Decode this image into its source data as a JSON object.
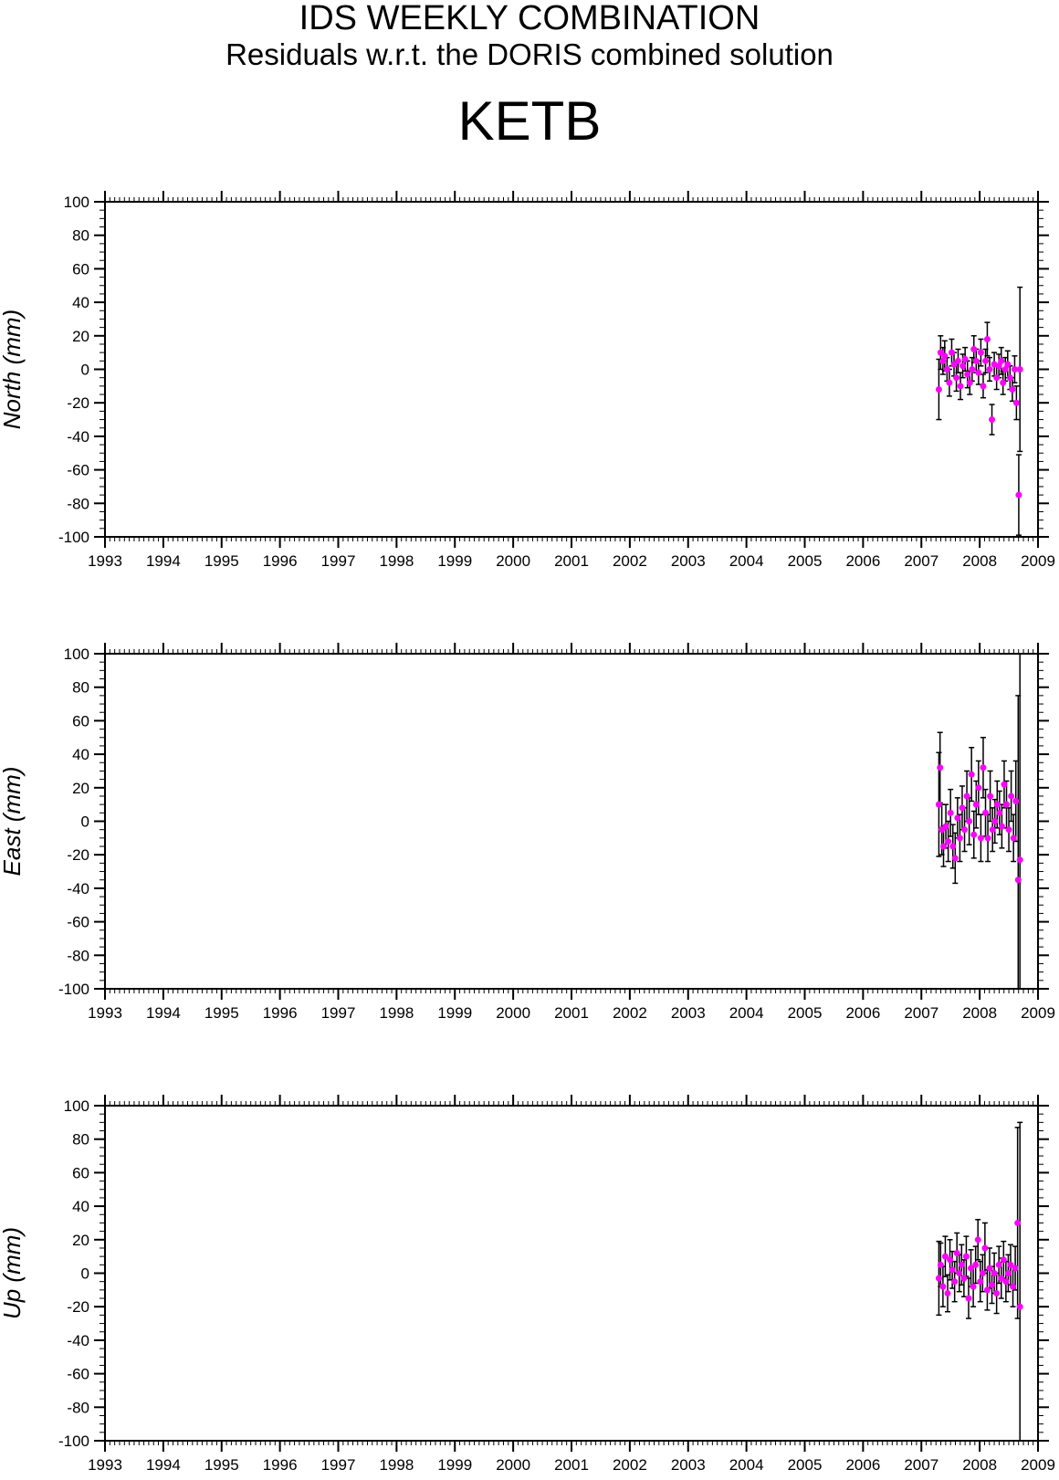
{
  "title": "IDS WEEKLY COMBINATION",
  "subtitle": "Residuals w.r.t. the DORIS combined solution",
  "station": "KETB",
  "colors": {
    "point": "#ff00ff",
    "errorbar": "#000000",
    "axis": "#000000"
  },
  "chart_data": [
    {
      "type": "scatter",
      "ylabel": "North (mm)",
      "xlim": [
        1993,
        2009
      ],
      "ylim": [
        -100,
        100
      ],
      "x_ticks": [
        "1993",
        "1994",
        "1995",
        "1996",
        "1997",
        "1998",
        "1999",
        "2000",
        "2001",
        "2002",
        "2003",
        "2004",
        "2005",
        "2006",
        "2007",
        "2008",
        "2009"
      ],
      "y_ticks": [
        "100",
        "80",
        "60",
        "40",
        "20",
        "0",
        "-20",
        "-40",
        "-60",
        "-80",
        "-100"
      ],
      "series": [
        {
          "x": [
            2007.3,
            2007.33,
            2007.37,
            2007.4,
            2007.44,
            2007.48,
            2007.52,
            2007.56,
            2007.6,
            2007.63,
            2007.67,
            2007.71,
            2007.75,
            2007.79,
            2007.83,
            2007.87,
            2007.9,
            2007.94,
            2007.98,
            2008.02,
            2008.06,
            2008.1,
            2008.13,
            2008.17,
            2008.21,
            2008.25,
            2008.29,
            2008.33,
            2008.37,
            2008.4,
            2008.44,
            2008.48,
            2008.52,
            2008.56,
            2008.6,
            2008.63,
            2008.67,
            2008.69
          ],
          "y": [
            -12,
            10,
            5,
            8,
            0,
            -8,
            10,
            3,
            -5,
            5,
            -10,
            2,
            6,
            -3,
            -8,
            0,
            12,
            5,
            -2,
            10,
            -10,
            5,
            18,
            0,
            -30,
            3,
            -5,
            2,
            5,
            -8,
            0,
            3,
            -5,
            -12,
            0,
            -20,
            -75,
            0
          ],
          "err": [
            18,
            10,
            8,
            9,
            7,
            8,
            8,
            7,
            8,
            7,
            8,
            7,
            7,
            8,
            7,
            7,
            8,
            7,
            7,
            8,
            7,
            7,
            10,
            7,
            9,
            7,
            7,
            7,
            8,
            7,
            7,
            8,
            7,
            7,
            8,
            10,
            24,
            49
          ]
        }
      ]
    },
    {
      "type": "scatter",
      "ylabel": "East (mm)",
      "xlim": [
        1993,
        2009
      ],
      "ylim": [
        -100,
        100
      ],
      "x_ticks": [
        "1993",
        "1994",
        "1995",
        "1996",
        "1997",
        "1998",
        "1999",
        "2000",
        "2001",
        "2002",
        "2003",
        "2004",
        "2005",
        "2006",
        "2007",
        "2008",
        "2009"
      ],
      "y_ticks": [
        "100",
        "80",
        "60",
        "40",
        "20",
        "0",
        "-20",
        "-40",
        "-60",
        "-80",
        "-100"
      ],
      "series": [
        {
          "x": [
            2007.3,
            2007.32,
            2007.35,
            2007.38,
            2007.42,
            2007.46,
            2007.5,
            2007.54,
            2007.58,
            2007.62,
            2007.66,
            2007.7,
            2007.74,
            2007.78,
            2007.82,
            2007.86,
            2007.9,
            2007.94,
            2007.98,
            2008.02,
            2008.06,
            2008.1,
            2008.14,
            2008.18,
            2008.22,
            2008.26,
            2008.3,
            2008.34,
            2008.38,
            2008.42,
            2008.46,
            2008.5,
            2008.54,
            2008.58,
            2008.62,
            2008.66,
            2008.69
          ],
          "y": [
            10,
            32,
            -5,
            -15,
            -3,
            -12,
            5,
            -15,
            -22,
            2,
            -10,
            8,
            -5,
            15,
            0,
            28,
            -8,
            10,
            20,
            -10,
            32,
            5,
            -10,
            15,
            -5,
            0,
            10,
            5,
            -3,
            22,
            10,
            -5,
            15,
            -10,
            12,
            -35,
            -23
          ],
          "err": [
            31,
            21,
            15,
            12,
            13,
            12,
            14,
            13,
            15,
            12,
            14,
            13,
            13,
            15,
            14,
            16,
            14,
            14,
            16,
            14,
            18,
            14,
            14,
            15,
            13,
            13,
            14,
            13,
            13,
            14,
            14,
            13,
            15,
            14,
            24,
            110,
            125
          ]
        }
      ]
    },
    {
      "type": "scatter",
      "ylabel": "Up (mm)",
      "xlim": [
        1993,
        2009
      ],
      "ylim": [
        -100,
        100
      ],
      "x_ticks": [
        "1993",
        "1994",
        "1995",
        "1996",
        "1997",
        "1998",
        "1999",
        "2000",
        "2001",
        "2002",
        "2003",
        "2004",
        "2005",
        "2006",
        "2007",
        "2008",
        "2009"
      ],
      "y_ticks": [
        "100",
        "80",
        "60",
        "40",
        "20",
        "0",
        "-20",
        "-40",
        "-60",
        "-80",
        "-100"
      ],
      "series": [
        {
          "x": [
            2007.3,
            2007.33,
            2007.37,
            2007.41,
            2007.45,
            2007.49,
            2007.53,
            2007.57,
            2007.61,
            2007.65,
            2007.69,
            2007.73,
            2007.77,
            2007.81,
            2007.85,
            2007.89,
            2007.93,
            2007.97,
            2008.01,
            2008.05,
            2008.09,
            2008.13,
            2008.17,
            2008.21,
            2008.25,
            2008.29,
            2008.33,
            2008.37,
            2008.41,
            2008.45,
            2008.49,
            2008.53,
            2008.57,
            2008.61,
            2008.65,
            2008.69
          ],
          "y": [
            -3,
            5,
            -8,
            10,
            -12,
            8,
            2,
            -5,
            12,
            0,
            5,
            -3,
            10,
            -15,
            3,
            -8,
            5,
            20,
            -5,
            0,
            15,
            -10,
            3,
            -7,
            0,
            -12,
            5,
            -3,
            8,
            -5,
            0,
            5,
            -8,
            3,
            30,
            -20
          ],
          "err": [
            22,
            13,
            12,
            12,
            11,
            12,
            11,
            12,
            12,
            11,
            12,
            11,
            12,
            12,
            11,
            12,
            11,
            12,
            12,
            11,
            15,
            12,
            12,
            11,
            12,
            12,
            11,
            12,
            11,
            12,
            11,
            12,
            12,
            13,
            57,
            110
          ]
        }
      ]
    }
  ]
}
